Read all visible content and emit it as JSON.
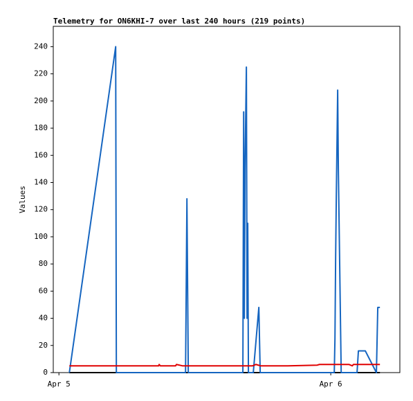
{
  "chart_data": {
    "type": "line",
    "title": "Telemetry for ON6KHI-7 over last 240 hours (219 points)",
    "y_label": "Values",
    "xlim": [
      -0.5,
      30.1
    ],
    "xticks": [
      {
        "value": 0,
        "label": "Apr 5"
      },
      {
        "value": 24,
        "label": "Apr 6"
      }
    ],
    "ylim": [
      0,
      255
    ],
    "yticks": [
      0,
      20,
      40,
      60,
      80,
      100,
      120,
      140,
      160,
      180,
      200,
      220,
      240
    ],
    "series": [
      {
        "color": "#000000",
        "x": [
          0.92,
          28.34
        ],
        "values": [
          0,
          0
        ]
      },
      {
        "color": "#1565c0",
        "x": [
          0.92,
          5.01,
          5.04,
          5.07,
          11.18,
          11.3,
          11.42,
          16.24,
          16.31,
          16.37,
          16.43,
          16.55,
          16.61,
          16.67,
          16.73,
          17.16,
          17.65,
          17.77,
          24.31,
          24.37,
          24.43,
          24.49,
          24.61,
          24.67,
          24.92,
          26.32,
          26.44,
          27.05,
          28.03,
          28.15,
          28.34
        ],
        "values": [
          0,
          240,
          120,
          0,
          0,
          128,
          0,
          0,
          192,
          40,
          150,
          225,
          40,
          110,
          0,
          0,
          48,
          0,
          0,
          25,
          85,
          130,
          208,
          150,
          0,
          0,
          16,
          16,
          0,
          48,
          48
        ]
      },
      {
        "color": "#e00000",
        "x": [
          0.92,
          8.8,
          8.85,
          8.95,
          10.3,
          10.38,
          10.9,
          17.1,
          17.4,
          17.8,
          20.2,
          22.8,
          23.0,
          25.6,
          25.9,
          26.0,
          28.34
        ],
        "values": [
          5,
          5,
          6,
          5,
          5,
          6,
          5,
          5,
          6,
          5,
          5,
          5.5,
          6,
          6,
          5,
          6,
          6
        ]
      }
    ]
  }
}
